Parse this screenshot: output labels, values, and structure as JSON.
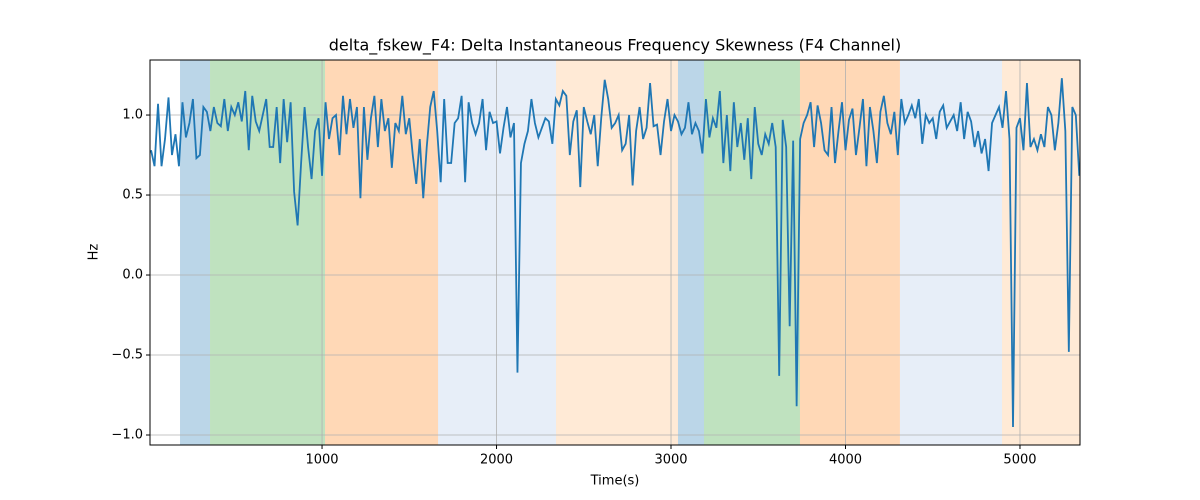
{
  "chart_data": {
    "type": "line",
    "title": "delta_fskew_F4: Delta Instantaneous Frequency Skewness (F4 Channel)",
    "xlabel": "Time(s)",
    "ylabel": "Hz",
    "color": "#1f77b4",
    "grid": true,
    "xlim": [
      14,
      5344
    ],
    "ylim": [
      -1.0625,
      1.344
    ],
    "xticks": [
      1000,
      2000,
      3000,
      4000,
      5000
    ],
    "yticks": [
      {
        "value": -1.0,
        "label": "−1.0"
      },
      {
        "value": -0.5,
        "label": "−0.5"
      },
      {
        "value": 0.0,
        "label": "0.0"
      },
      0.5,
      {
        "value": 1.0,
        "label": "1.0"
      }
    ],
    "spans": [
      {
        "start": 186,
        "end": 358,
        "color": "#1f77b4"
      },
      {
        "start": 358,
        "end": 1017,
        "color": "#2ca02c"
      },
      {
        "start": 1017,
        "end": 1665,
        "color": "#ff7f0e"
      },
      {
        "start": 1665,
        "end": 2341,
        "color": "#aec7e8"
      },
      {
        "start": 2341,
        "end": 3040,
        "color": "#ffbb78"
      },
      {
        "start": 3040,
        "end": 3189,
        "color": "#1f77b4"
      },
      {
        "start": 3189,
        "end": 3739,
        "color": "#2ca02c"
      },
      {
        "start": 3739,
        "end": 4312,
        "color": "#ff7f0e"
      },
      {
        "start": 4312,
        "end": 4897,
        "color": "#aec7e8"
      },
      {
        "start": 4897,
        "end": 5344,
        "color": "#ffbb78"
      }
    ],
    "x": [
      20,
      40,
      60,
      80,
      100,
      120,
      140,
      160,
      180,
      200,
      220,
      240,
      260,
      280,
      300,
      320,
      340,
      360,
      380,
      400,
      420,
      440,
      460,
      480,
      500,
      520,
      540,
      560,
      580,
      600,
      620,
      640,
      660,
      680,
      700,
      720,
      740,
      760,
      780,
      800,
      820,
      840,
      860,
      880,
      900,
      920,
      940,
      960,
      980,
      1000,
      1020,
      1040,
      1060,
      1080,
      1100,
      1120,
      1140,
      1160,
      1180,
      1200,
      1220,
      1240,
      1260,
      1280,
      1300,
      1320,
      1340,
      1360,
      1380,
      1400,
      1420,
      1440,
      1460,
      1480,
      1500,
      1520,
      1540,
      1560,
      1580,
      1600,
      1620,
      1640,
      1660,
      1680,
      1700,
      1720,
      1740,
      1760,
      1780,
      1800,
      1820,
      1840,
      1860,
      1880,
      1900,
      1920,
      1940,
      1960,
      1980,
      2000,
      2020,
      2040,
      2060,
      2080,
      2100,
      2120,
      2140,
      2160,
      2180,
      2200,
      2220,
      2240,
      2260,
      2280,
      2300,
      2320,
      2340,
      2360,
      2380,
      2400,
      2420,
      2440,
      2460,
      2480,
      2500,
      2520,
      2540,
      2560,
      2580,
      2600,
      2620,
      2640,
      2660,
      2680,
      2700,
      2720,
      2740,
      2760,
      2780,
      2800,
      2820,
      2840,
      2860,
      2880,
      2900,
      2920,
      2940,
      2960,
      2980,
      3000,
      3020,
      3040,
      3060,
      3080,
      3100,
      3120,
      3140,
      3160,
      3180,
      3200,
      3220,
      3240,
      3260,
      3280,
      3300,
      3320,
      3340,
      3360,
      3380,
      3400,
      3420,
      3440,
      3460,
      3480,
      3500,
      3520,
      3540,
      3560,
      3580,
      3600,
      3620,
      3640,
      3660,
      3680,
      3700,
      3720,
      3740,
      3760,
      3780,
      3800,
      3820,
      3840,
      3860,
      3880,
      3900,
      3920,
      3940,
      3960,
      3980,
      4000,
      4020,
      4040,
      4060,
      4080,
      4100,
      4120,
      4140,
      4160,
      4180,
      4200,
      4220,
      4240,
      4260,
      4280,
      4300,
      4320,
      4340,
      4360,
      4380,
      4400,
      4420,
      4440,
      4460,
      4480,
      4500,
      4520,
      4540,
      4560,
      4580,
      4600,
      4620,
      4640,
      4660,
      4680,
      4700,
      4720,
      4740,
      4760,
      4780,
      4800,
      4820,
      4840,
      4860,
      4880,
      4900,
      4920,
      4940,
      4960,
      4980,
      5000,
      5020,
      5040,
      5060,
      5080,
      5100,
      5120,
      5140,
      5160,
      5180,
      5200,
      5220,
      5240,
      5260,
      5280,
      5300,
      5320,
      5340
    ],
    "values": [
      0.78,
      0.68,
      1.07,
      0.68,
      0.85,
      1.11,
      0.75,
      0.88,
      0.68,
      1.08,
      0.86,
      0.95,
      1.1,
      0.73,
      0.75,
      1.05,
      1.02,
      0.9,
      1.05,
      0.95,
      0.93,
      1.1,
      0.9,
      1.05,
      1.0,
      1.08,
      0.96,
      1.15,
      0.78,
      1.12,
      0.96,
      0.9,
      1.0,
      1.1,
      0.8,
      0.8,
      1.05,
      0.7,
      1.1,
      0.83,
      1.08,
      0.52,
      0.31,
      0.7,
      1.05,
      0.8,
      0.6,
      0.9,
      0.98,
      0.62,
      1.08,
      0.85,
      0.98,
      1.0,
      0.75,
      1.12,
      0.88,
      1.1,
      0.92,
      1.05,
      0.48,
      1.05,
      0.72,
      0.98,
      1.12,
      0.8,
      1.1,
      0.9,
      0.98,
      0.67,
      0.95,
      0.9,
      1.12,
      0.88,
      0.98,
      0.75,
      0.57,
      0.85,
      0.48,
      0.8,
      1.05,
      1.15,
      0.9,
      0.58,
      1.1,
      0.7,
      0.7,
      0.95,
      0.98,
      1.12,
      0.58,
      1.08,
      0.95,
      0.88,
      0.95,
      1.1,
      0.78,
      1.02,
      0.95,
      0.96,
      0.76,
      0.92,
      1.05,
      0.86,
      0.95,
      -0.61,
      0.7,
      0.82,
      0.9,
      1.1,
      0.95,
      0.86,
      0.92,
      0.98,
      0.96,
      0.82,
      1.1,
      1.06,
      1.15,
      1.12,
      0.75,
      0.96,
      1.03,
      0.55,
      1.05,
      0.96,
      0.88,
      1.0,
      0.68,
      0.98,
      1.22,
      1.1,
      0.92,
      0.95,
      1.0,
      0.78,
      0.82,
      1.0,
      0.56,
      0.9,
      1.05,
      0.85,
      0.92,
      1.2,
      0.93,
      0.94,
      0.75,
      0.96,
      1.1,
      0.9,
      1.0,
      0.96,
      0.88,
      0.92,
      1.08,
      0.88,
      0.95,
      0.9,
      0.76,
      1.1,
      0.86,
      0.98,
      0.92,
      1.15,
      0.7,
      1.0,
      0.65,
      1.08,
      0.8,
      0.95,
      0.72,
      0.98,
      0.6,
      1.05,
      0.82,
      0.75,
      0.88,
      0.82,
      0.95,
      0.8,
      -0.63,
      0.97,
      0.8,
      -0.32,
      0.84,
      -0.82,
      0.85,
      0.95,
      1.0,
      1.08,
      0.8,
      1.06,
      0.95,
      0.78,
      0.75,
      1.05,
      0.7,
      0.9,
      1.08,
      0.78,
      0.97,
      1.04,
      0.75,
      0.92,
      1.1,
      0.68,
      1.05,
      0.9,
      0.7,
      1.02,
      1.12,
      0.95,
      0.88,
      1.02,
      0.75,
      1.1,
      0.95,
      1.0,
      1.06,
      0.98,
      1.1,
      0.82,
      1.0,
      0.95,
      0.98,
      0.85,
      1.02,
      1.06,
      0.92,
      0.96,
      1.0,
      0.9,
      1.08,
      0.85,
      1.02,
      0.96,
      0.8,
      0.9,
      0.76,
      0.85,
      0.65,
      0.95,
      1.0,
      1.05,
      0.92,
      1.15,
      0.85,
      -0.95,
      0.92,
      0.98,
      0.78,
      1.2,
      0.8,
      0.85,
      0.78,
      0.88,
      0.8,
      1.05,
      1.0,
      0.78,
      0.95,
      1.23,
      0.9,
      -0.48,
      1.05,
      1.0,
      0.62
    ]
  }
}
